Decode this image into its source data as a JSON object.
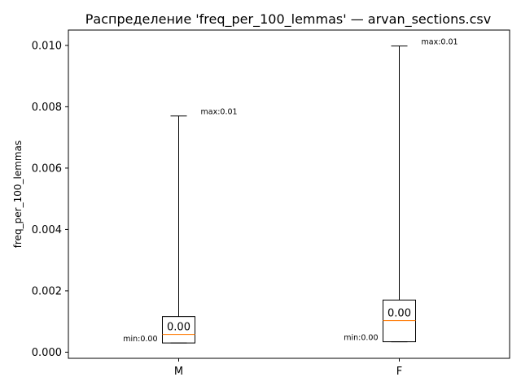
{
  "chart_data": {
    "type": "box",
    "title": "Распределение 'freq_per_100_lemmas' — arvan_sections.csv",
    "xlabel": "",
    "ylabel": "freq_per_100_lemmas",
    "ylim": [
      -0.0002,
      0.0105
    ],
    "yticks": [
      0.0,
      0.002,
      0.004,
      0.006,
      0.008,
      0.01
    ],
    "ytick_labels": [
      "0.000",
      "0.002",
      "0.004",
      "0.006",
      "0.008",
      "0.010"
    ],
    "categories": [
      "M",
      "F"
    ],
    "boxes": [
      {
        "category": "M",
        "whisker_low": 0.0003,
        "q1": 0.0003,
        "median": 0.00058,
        "q3": 0.00116,
        "whisker_high": 0.0077,
        "median_label": "0.00",
        "min_label": "min:0.00",
        "max_label": "max:0.01"
      },
      {
        "category": "F",
        "whisker_low": 0.00034,
        "q1": 0.00034,
        "median": 0.00103,
        "q3": 0.0017,
        "whisker_high": 0.00998,
        "median_label": "0.00",
        "min_label": "min:0.00",
        "max_label": "max:0.01"
      }
    ],
    "colors": {
      "box": "#000000",
      "median": "#ff7f0e",
      "axes": "#000000"
    },
    "grid": false
  }
}
